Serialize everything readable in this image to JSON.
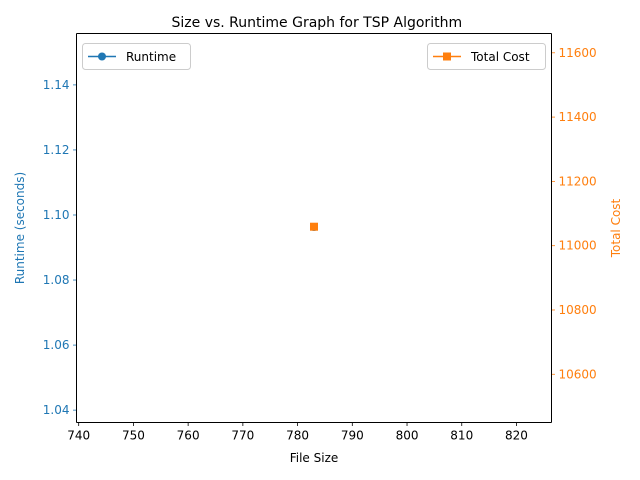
{
  "chart_data": {
    "type": "line",
    "title": "Size vs. Runtime Graph for TSP Algorithm",
    "xlabel": "File Size",
    "xlim": [
      739.6,
      826.4
    ],
    "x_ticks": [
      740,
      750,
      760,
      770,
      780,
      790,
      800,
      810,
      820
    ],
    "left_axis": {
      "label": "Runtime (seconds)",
      "color": "#1f77b4",
      "ylim": [
        1.0362,
        1.1558
      ],
      "ticks": [
        "1.04",
        "1.06",
        "1.08",
        "1.10",
        "1.12",
        "1.14"
      ]
    },
    "right_axis": {
      "label": "Total Cost",
      "color": "#ff7f0e",
      "ylim": [
        10450,
        11660
      ],
      "ticks": [
        "10600",
        "10800",
        "11000",
        "11200",
        "11400",
        "11600"
      ]
    },
    "series": [
      {
        "name": "Runtime",
        "axis": "left",
        "marker": "circle",
        "color": "#1f77b4",
        "x": [
          783
        ],
        "y": [
          1.0963
        ]
      },
      {
        "name": "Total Cost",
        "axis": "right",
        "marker": "square",
        "color": "#ff7f0e",
        "x": [
          783
        ],
        "y": [
          11059
        ]
      }
    ],
    "legends": {
      "left": "upper-left",
      "right": "upper-right"
    },
    "grid": false
  }
}
